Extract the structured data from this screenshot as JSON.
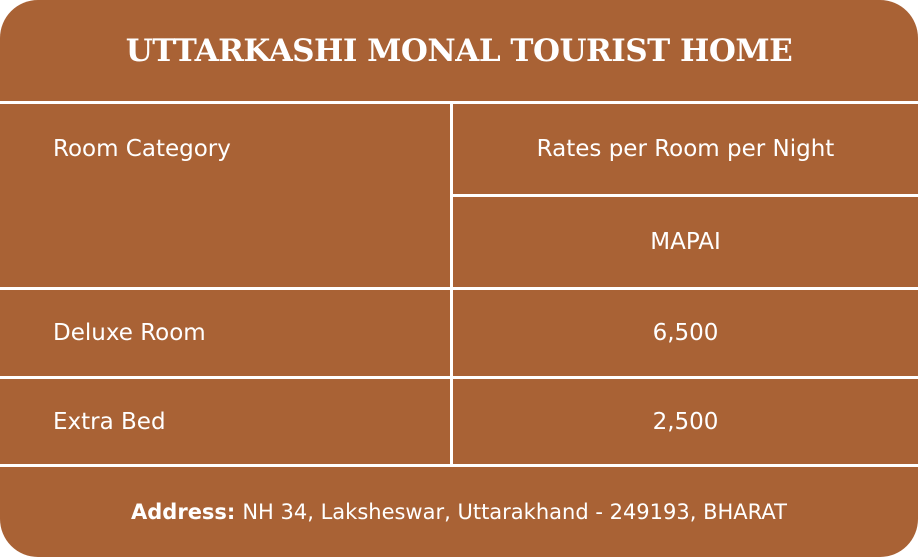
{
  "title": "UTTARKASHI MONAL TOURIST HOME",
  "table": {
    "header_left": "Room Category",
    "header_right": "Rates per Room per Night",
    "subheader_right": "MAPAI",
    "rows": [
      {
        "category": "Deluxe Room",
        "rate": "6,500"
      },
      {
        "category": "Extra Bed",
        "rate": "2,500"
      }
    ]
  },
  "address": {
    "label": "Address:",
    "text": "NH 34, Laksheswar, Uttarakhand - 249193, BHARAT"
  },
  "colors": {
    "background": "#a96235",
    "text": "#ffffff",
    "lines": "#ffffff"
  }
}
